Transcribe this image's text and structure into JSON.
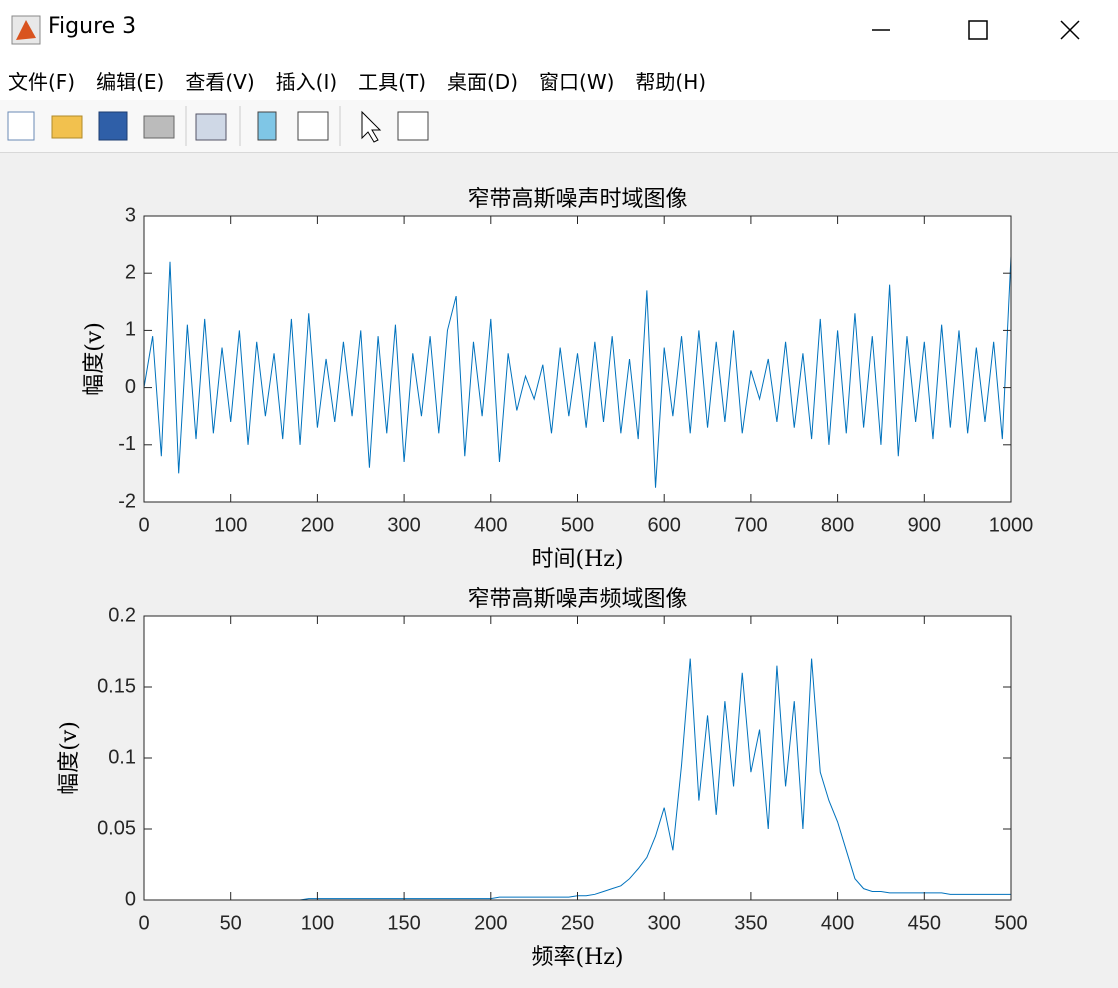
{
  "window": {
    "title": "Figure 3"
  },
  "menu": {
    "items": [
      "文件(F)",
      "编辑(E)",
      "查看(V)",
      "插入(I)",
      "工具(T)",
      "桌面(D)",
      "窗口(W)",
      "帮助(H)"
    ]
  },
  "chart_data": [
    {
      "type": "line",
      "title": "窄带高斯噪声时域图像",
      "xlabel": "时间(Hz)",
      "ylabel": "幅度(v)",
      "x": [
        0,
        10,
        20,
        30,
        40,
        50,
        60,
        70,
        80,
        90,
        100,
        110,
        120,
        130,
        140,
        150,
        160,
        170,
        180,
        190,
        200,
        210,
        220,
        230,
        240,
        250,
        260,
        270,
        280,
        290,
        300,
        310,
        320,
        330,
        340,
        350,
        360,
        370,
        380,
        390,
        400,
        410,
        420,
        430,
        440,
        450,
        460,
        470,
        480,
        490,
        500,
        510,
        520,
        530,
        540,
        550,
        560,
        570,
        580,
        590,
        600,
        610,
        620,
        630,
        640,
        650,
        660,
        670,
        680,
        690,
        700,
        710,
        720,
        730,
        740,
        750,
        760,
        770,
        780,
        790,
        800,
        810,
        820,
        830,
        840,
        850,
        860,
        870,
        880,
        890,
        900,
        910,
        920,
        930,
        940,
        950,
        960,
        970,
        980,
        990,
        1000
      ],
      "series": [
        {
          "color": "#0072bd",
          "values": [
            0,
            0.9,
            -1.2,
            2.2,
            -1.5,
            1.1,
            -0.9,
            1.2,
            -0.8,
            0.7,
            -0.6,
            1.0,
            -1.0,
            0.8,
            -0.5,
            0.6,
            -0.9,
            1.2,
            -1.0,
            1.3,
            -0.7,
            0.5,
            -0.6,
            0.8,
            -0.5,
            1.0,
            -1.4,
            0.9,
            -0.8,
            1.1,
            -1.3,
            0.6,
            -0.5,
            0.9,
            -0.8,
            1.0,
            1.6,
            -1.2,
            0.8,
            -0.5,
            1.2,
            -1.3,
            0.6,
            -0.4,
            0.2,
            -0.2,
            0.4,
            -0.8,
            0.7,
            -0.5,
            0.6,
            -0.7,
            0.8,
            -0.6,
            0.9,
            -0.8,
            0.5,
            -0.9,
            1.7,
            -1.75,
            0.7,
            -0.5,
            0.9,
            -0.8,
            1.0,
            -0.7,
            0.8,
            -0.6,
            1.0,
            -0.8,
            0.3,
            -0.2,
            0.5,
            -0.6,
            0.8,
            -0.7,
            0.6,
            -0.9,
            1.2,
            -1.0,
            1.0,
            -0.8,
            1.3,
            -0.7,
            0.9,
            -1.0,
            1.8,
            -1.2,
            0.9,
            -0.6,
            0.8,
            -0.9,
            1.1,
            -0.7,
            1.0,
            -0.8,
            0.7,
            -0.6,
            0.8,
            -0.9,
            2.3
          ]
        }
      ],
      "xlim": [
        0,
        1000
      ],
      "ylim": [
        -2,
        3
      ],
      "xticks": [
        0,
        100,
        200,
        300,
        400,
        500,
        600,
        700,
        800,
        900,
        1000
      ],
      "yticks": [
        -2,
        -1,
        0,
        1,
        2,
        3
      ]
    },
    {
      "type": "line",
      "title": "窄带高斯噪声频域图像",
      "xlabel": "频率(Hz)",
      "ylabel": "幅度(v)",
      "x": [
        0,
        5,
        10,
        15,
        20,
        25,
        30,
        35,
        40,
        45,
        50,
        55,
        60,
        65,
        70,
        75,
        80,
        85,
        90,
        95,
        100,
        105,
        110,
        115,
        120,
        125,
        130,
        135,
        140,
        145,
        150,
        155,
        160,
        165,
        170,
        175,
        180,
        185,
        190,
        195,
        200,
        205,
        210,
        215,
        220,
        225,
        230,
        235,
        240,
        245,
        250,
        255,
        260,
        265,
        270,
        275,
        280,
        285,
        290,
        295,
        300,
        305,
        310,
        315,
        320,
        325,
        330,
        335,
        340,
        345,
        350,
        355,
        360,
        365,
        370,
        375,
        380,
        385,
        390,
        395,
        400,
        405,
        410,
        415,
        420,
        425,
        430,
        435,
        440,
        445,
        450,
        455,
        460,
        465,
        470,
        475,
        480,
        485,
        490,
        495,
        500
      ],
      "series": [
        {
          "color": "#0072bd",
          "values": [
            0,
            0,
            0,
            0,
            0,
            0,
            0,
            0,
            0,
            0,
            0,
            0,
            0,
            0,
            0,
            0,
            0,
            0,
            0,
            0.001,
            0.001,
            0.001,
            0.001,
            0.001,
            0.001,
            0.001,
            0.001,
            0.001,
            0.001,
            0.001,
            0.001,
            0.001,
            0.001,
            0.001,
            0.001,
            0.001,
            0.001,
            0.001,
            0.001,
            0.001,
            0.001,
            0.002,
            0.002,
            0.002,
            0.002,
            0.002,
            0.002,
            0.002,
            0.002,
            0.002,
            0.003,
            0.003,
            0.004,
            0.006,
            0.008,
            0.01,
            0.015,
            0.022,
            0.03,
            0.045,
            0.065,
            0.035,
            0.095,
            0.17,
            0.07,
            0.13,
            0.06,
            0.14,
            0.08,
            0.16,
            0.09,
            0.12,
            0.05,
            0.165,
            0.08,
            0.14,
            0.05,
            0.17,
            0.09,
            0.07,
            0.055,
            0.035,
            0.015,
            0.008,
            0.006,
            0.006,
            0.005,
            0.005,
            0.005,
            0.005,
            0.005,
            0.005,
            0.005,
            0.004,
            0.004,
            0.004,
            0.004,
            0.004,
            0.004,
            0.004,
            0.004
          ]
        }
      ],
      "xlim": [
        0,
        500
      ],
      "ylim": [
        0,
        0.2
      ],
      "xticks": [
        0,
        50,
        100,
        150,
        200,
        250,
        300,
        350,
        400,
        450,
        500
      ],
      "yticks": [
        0,
        0.05,
        0.1,
        0.15,
        0.2
      ]
    }
  ]
}
